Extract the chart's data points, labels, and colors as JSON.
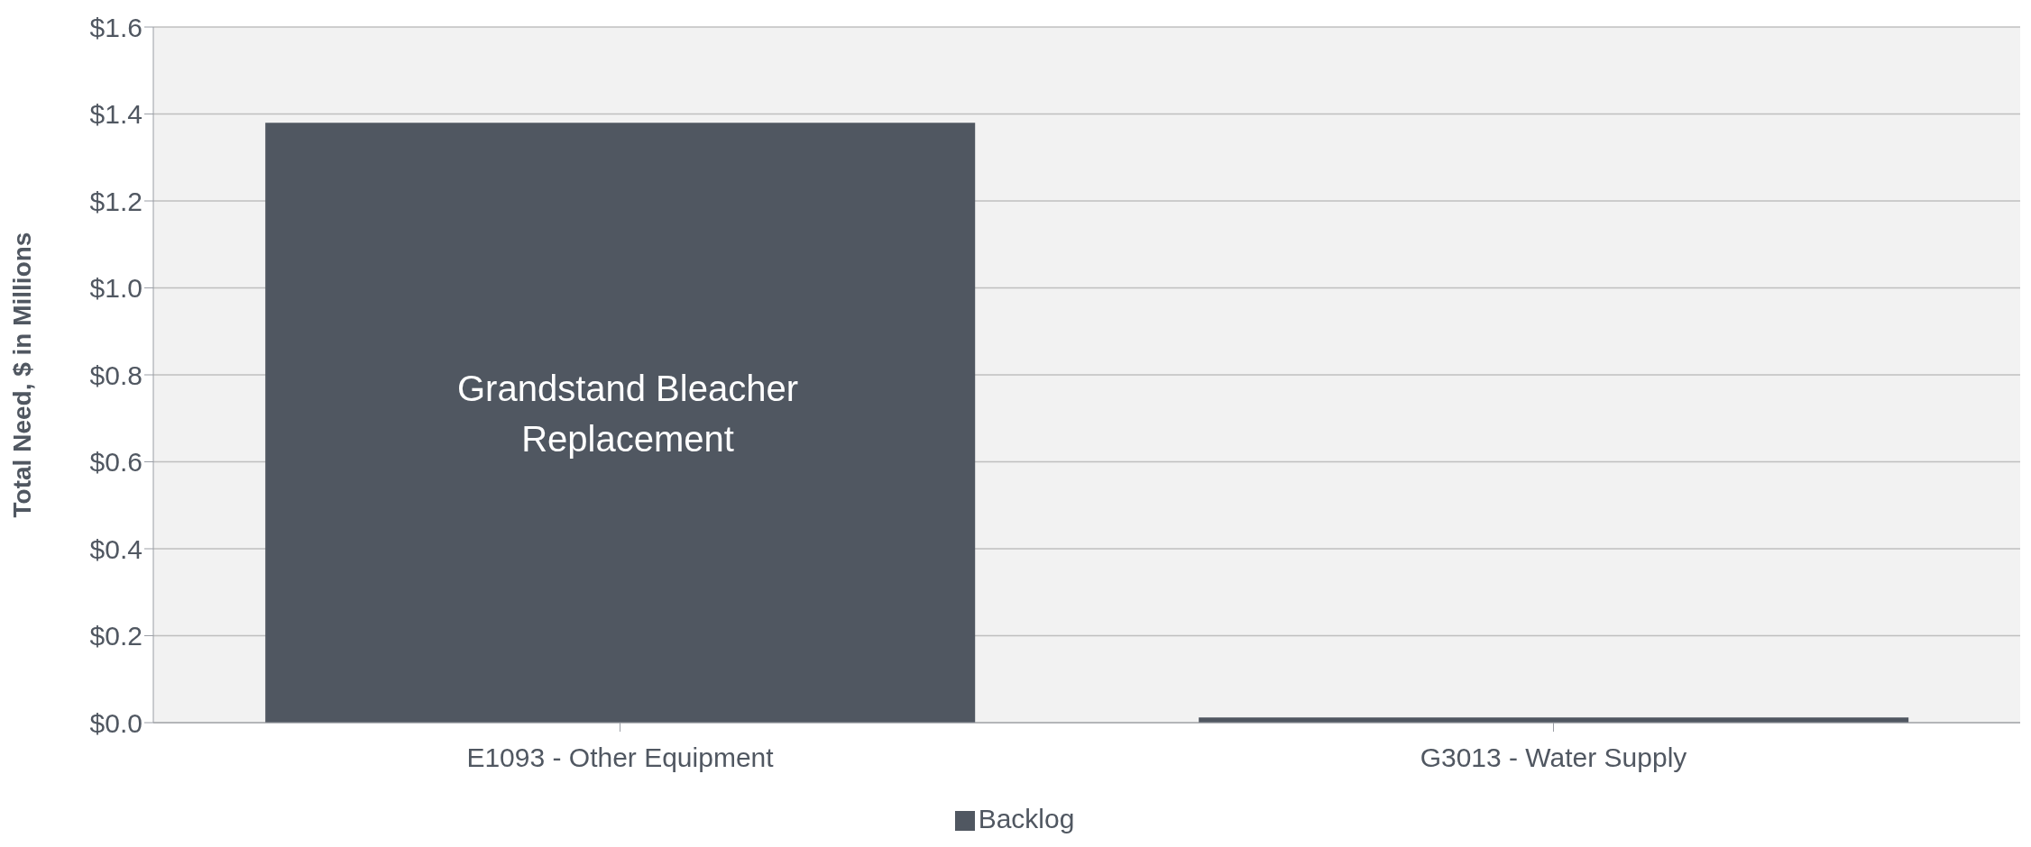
{
  "chart_data": {
    "type": "bar",
    "ylabel": "Total Need, $ in Millions",
    "categories": [
      "E1093 - Other Equipment",
      "G3013 - Water Supply"
    ],
    "series": [
      {
        "name": "Backlog",
        "color": "#505761",
        "values": [
          1.38,
          0.012
        ]
      }
    ],
    "ylim": [
      0,
      1.6
    ],
    "yticks": [
      {
        "value": 0,
        "label": "$0.0"
      },
      {
        "value": 0.2,
        "label": "$0.2"
      },
      {
        "value": 0.4,
        "label": "$0.4"
      },
      {
        "value": 0.6,
        "label": "$0.6"
      },
      {
        "value": 0.8,
        "label": "$0.8"
      },
      {
        "value": 1.0,
        "label": "$1.0"
      },
      {
        "value": 1.2,
        "label": "$1.2"
      },
      {
        "value": 1.4,
        "label": "$1.4"
      },
      {
        "value": 1.6,
        "label": "$1.6"
      }
    ],
    "annotations": [
      "Grandstand Bleacher Replacement"
    ],
    "grid": "y",
    "legend": "bottom"
  }
}
